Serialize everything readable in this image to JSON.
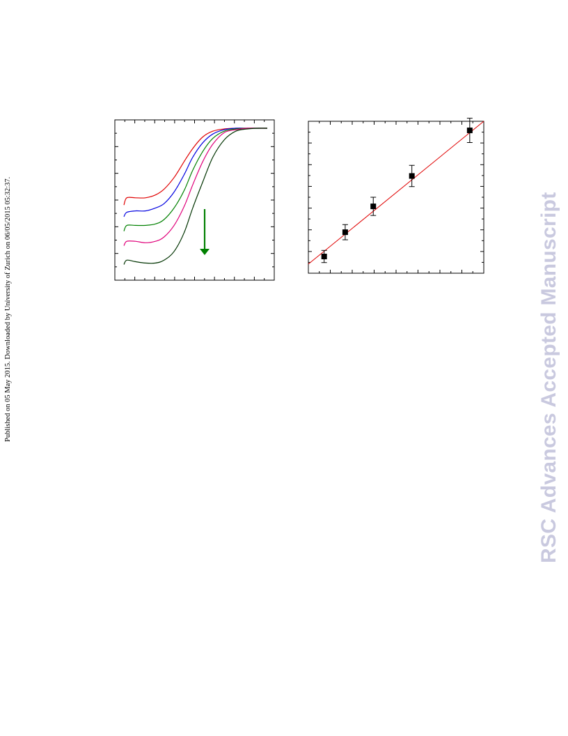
{
  "side_note": "Published on 05 May 2015. Downloaded by University of Zurich on 06/05/2015 05:32:37.",
  "watermark": "RSC Advances Accepted Manuscript",
  "colors": {
    "series": [
      "#e00000",
      "#0000e0",
      "#008000",
      "#e0007a",
      "#003300"
    ],
    "arrow": "#008000",
    "fit_line": "#e00000",
    "points": "#000000"
  },
  "chart_data": [
    {
      "type": "line",
      "title": "",
      "xlabel": "",
      "ylabel": "",
      "xlim": [
        0,
        100
      ],
      "ylim": [
        0,
        100
      ],
      "grid": false,
      "legend": "none",
      "annotation": "downward arrow (green) indicating decreasing trend across series",
      "series": [
        {
          "color": "#e00000",
          "x": [
            0,
            2,
            8,
            15,
            22,
            28,
            35,
            42,
            48,
            55,
            62,
            70,
            78,
            86,
            94,
            100
          ],
          "y": [
            47,
            52,
            52,
            52,
            54,
            58,
            66,
            77,
            86,
            94,
            98,
            99.5,
            100,
            100,
            100,
            100
          ]
        },
        {
          "color": "#0000e0",
          "x": [
            0,
            2,
            8,
            15,
            22,
            28,
            35,
            42,
            48,
            55,
            62,
            70,
            78,
            86,
            94,
            100
          ],
          "y": [
            39,
            42,
            43,
            43,
            45,
            48,
            56,
            68,
            80,
            90,
            96,
            99,
            100,
            100,
            100,
            100
          ]
        },
        {
          "color": "#008000",
          "x": [
            0,
            2,
            8,
            15,
            22,
            28,
            35,
            42,
            48,
            55,
            62,
            70,
            78,
            86,
            94,
            100
          ],
          "y": [
            29,
            33,
            33,
            33,
            34,
            37,
            45,
            57,
            71,
            84,
            93,
            98,
            99.5,
            100,
            100,
            100
          ]
        },
        {
          "color": "#e0007a",
          "x": [
            0,
            2,
            8,
            15,
            22,
            28,
            35,
            42,
            48,
            55,
            62,
            70,
            78,
            86,
            94,
            100
          ],
          "y": [
            19,
            22,
            22,
            21,
            22,
            25,
            33,
            46,
            61,
            77,
            89,
            97,
            99,
            100,
            100,
            100
          ]
        },
        {
          "color": "#003300",
          "x": [
            0,
            2,
            8,
            15,
            22,
            28,
            35,
            42,
            48,
            55,
            62,
            70,
            78,
            86,
            94,
            100
          ],
          "y": [
            6,
            9,
            8,
            7,
            7,
            9,
            15,
            28,
            45,
            63,
            80,
            92,
            98,
            99.5,
            100,
            100
          ]
        }
      ]
    },
    {
      "type": "scatter",
      "title": "",
      "xlabel": "",
      "ylabel": "",
      "xlim": [
        0,
        100
      ],
      "ylim": [
        0,
        100
      ],
      "grid": false,
      "legend": "none",
      "points": {
        "x": [
          9,
          21,
          37,
          59,
          92
        ],
        "y": [
          11,
          27,
          44,
          64,
          94
        ],
        "yerr": [
          4,
          5,
          6,
          7,
          8
        ]
      },
      "fit_line": {
        "x": [
          0,
          100
        ],
        "y": [
          6,
          100
        ]
      }
    }
  ]
}
